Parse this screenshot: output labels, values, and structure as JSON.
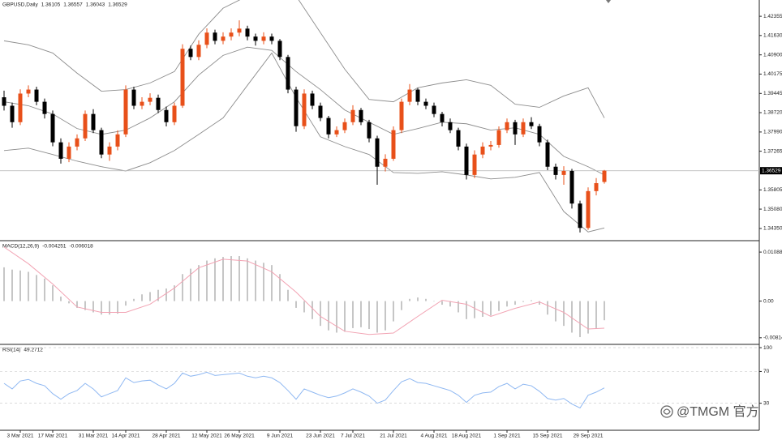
{
  "chart_data": [
    {
      "type": "candlestick",
      "title": "GBPUSD,Daily",
      "categories": [
        null,
        null,
        "3 Mar 2021",
        null,
        null,
        null,
        "17 Mar 2021",
        null,
        null,
        null,
        null,
        "31 Mar 2021",
        null,
        null,
        null,
        "14 Apr 2021",
        null,
        null,
        null,
        null,
        "28 Apr 2021",
        null,
        null,
        null,
        null,
        "12 May 2021",
        null,
        null,
        null,
        "26 May 2021",
        null,
        null,
        null,
        null,
        "9 Jun 2021",
        null,
        null,
        null,
        null,
        "23 Jun 2021",
        null,
        null,
        null,
        "7 Jul 2021",
        null,
        null,
        null,
        null,
        "21 Jul 2021",
        null,
        null,
        null,
        null,
        "4 Aug 2021",
        null,
        null,
        null,
        "18 Aug 2021",
        null,
        null,
        null,
        null,
        "1 Sep 2021",
        null,
        null,
        null,
        null,
        "15 Sep 2021",
        null,
        null,
        null,
        null,
        "29 Sep 2021",
        null,
        null
      ],
      "open": [
        1.393,
        1.3898,
        1.3836,
        1.3944,
        1.3959,
        1.3913,
        1.3867,
        1.376,
        1.3698,
        1.3744,
        1.3775,
        1.3867,
        1.3806,
        1.3714,
        1.3744,
        1.379,
        1.3959,
        1.3898,
        1.3913,
        1.3928,
        1.3882,
        1.3836,
        1.3898,
        1.4113,
        1.4082,
        1.4128,
        1.4174,
        1.4143,
        1.4159,
        1.4174,
        1.4189,
        1.4159,
        1.4143,
        1.4159,
        1.4143,
        1.4082,
        1.3959,
        1.3821,
        1.3944,
        1.3898,
        1.3852,
        1.379,
        1.3806,
        1.3836,
        1.3882,
        1.3836,
        1.3775,
        1.3668,
        1.3698,
        1.3806,
        1.3913,
        1.3959,
        1.3913,
        1.3898,
        1.3867,
        1.3836,
        1.3806,
        1.3744,
        1.3637,
        1.3714,
        1.3744,
        1.375,
        1.3806,
        1.3836,
        1.379,
        1.3836,
        1.3821,
        1.376,
        1.3668,
        1.3637,
        1.3652,
        1.3529,
        1.3437,
        1.3576,
        1.36105
      ],
      "high": [
        1.3955,
        1.391,
        1.396,
        1.3975,
        1.397,
        1.3925,
        1.388,
        1.3775,
        1.376,
        1.379,
        1.388,
        1.3885,
        1.3815,
        1.376,
        1.3805,
        1.3975,
        1.397,
        1.393,
        1.3945,
        1.394,
        1.3895,
        1.391,
        1.413,
        1.4125,
        1.4145,
        1.419,
        1.4185,
        1.4175,
        1.419,
        1.422,
        1.42,
        1.417,
        1.4175,
        1.417,
        1.415,
        1.409,
        1.397,
        1.396,
        1.3955,
        1.391,
        1.386,
        1.382,
        1.385,
        1.39,
        1.389,
        1.3845,
        1.3785,
        1.3715,
        1.382,
        1.3925,
        1.398,
        1.3965,
        1.3925,
        1.391,
        1.3875,
        1.385,
        1.3815,
        1.3755,
        1.373,
        1.376,
        1.3765,
        1.382,
        1.385,
        1.3845,
        1.385,
        1.3855,
        1.383,
        1.377,
        1.368,
        1.367,
        1.366,
        1.354,
        1.359,
        1.3625,
        1.36557
      ],
      "low": [
        1.388,
        1.3815,
        1.3825,
        1.393,
        1.39,
        1.385,
        1.3745,
        1.368,
        1.3685,
        1.373,
        1.3765,
        1.3795,
        1.37,
        1.369,
        1.373,
        1.378,
        1.3885,
        1.3885,
        1.39,
        1.387,
        1.382,
        1.3825,
        1.389,
        1.407,
        1.407,
        1.4115,
        1.413,
        1.413,
        1.4145,
        1.416,
        1.4145,
        1.4125,
        1.413,
        1.413,
        1.407,
        1.3945,
        1.38,
        1.381,
        1.3885,
        1.384,
        1.3775,
        1.378,
        1.3795,
        1.3825,
        1.3825,
        1.376,
        1.36,
        1.365,
        1.369,
        1.3795,
        1.39,
        1.39,
        1.3885,
        1.3855,
        1.382,
        1.3795,
        1.373,
        1.362,
        1.3625,
        1.37,
        1.373,
        1.374,
        1.3795,
        1.375,
        1.378,
        1.381,
        1.3745,
        1.3655,
        1.362,
        1.36,
        1.351,
        1.342,
        1.343,
        1.356,
        1.36043
      ],
      "close": [
        1.3898,
        1.3836,
        1.3944,
        1.3959,
        1.3913,
        1.3867,
        1.376,
        1.3698,
        1.3744,
        1.3775,
        1.3867,
        1.3806,
        1.3714,
        1.3744,
        1.379,
        1.3959,
        1.3898,
        1.3913,
        1.3928,
        1.3882,
        1.3836,
        1.3898,
        1.4113,
        1.4082,
        1.4128,
        1.4174,
        1.4143,
        1.4159,
        1.4174,
        1.4189,
        1.4159,
        1.4143,
        1.4159,
        1.4143,
        1.4082,
        1.3959,
        1.3821,
        1.3944,
        1.3898,
        1.3852,
        1.379,
        1.3806,
        1.3836,
        1.3882,
        1.3836,
        1.3775,
        1.3668,
        1.3698,
        1.3806,
        1.3913,
        1.3959,
        1.3913,
        1.3898,
        1.3867,
        1.3836,
        1.3806,
        1.3744,
        1.3637,
        1.3714,
        1.3744,
        1.375,
        1.3806,
        1.3836,
        1.379,
        1.3836,
        1.3821,
        1.376,
        1.3668,
        1.3637,
        1.3652,
        1.3529,
        1.3437,
        1.3576,
        1.3606,
        1.36529
      ],
      "up_color": "#e8501a",
      "down_color": "#000000",
      "bands": {
        "x": [
          0,
          3,
          6,
          9,
          12,
          15,
          18,
          21,
          24,
          27,
          30,
          33,
          36,
          39,
          42,
          45,
          48,
          51,
          54,
          57,
          60,
          63,
          66,
          69,
          72,
          74
        ],
        "lines": [
          {
            "color": "#8c8c8c",
            "values": [
              1.4143,
              1.4128,
              1.4097,
              1.4021,
              1.3953,
              1.3959,
              1.3984,
              1.4027,
              1.4168,
              1.4266,
              1.4312,
              1.4358,
              1.4312,
              1.4174,
              1.4036,
              1.3922,
              1.3913,
              1.3966,
              1.3984,
              1.3996,
              1.3975,
              1.3904,
              1.3892,
              1.3935,
              1.3966,
              1.3852
            ]
          },
          {
            "color": "#8c8c8c",
            "values": [
              1.3913,
              1.3898,
              1.3867,
              1.3812,
              1.379,
              1.3806,
              1.3852,
              1.3913,
              1.4014,
              1.4088,
              1.4119,
              1.4107,
              1.4027,
              1.3959,
              1.3882,
              1.3836,
              1.379,
              1.3812,
              1.3836,
              1.383,
              1.3806,
              1.3815,
              1.379,
              1.3707,
              1.3668,
              1.3637
            ]
          },
          {
            "color": "#8c8c8c",
            "values": [
              1.3729,
              1.3738,
              1.3714,
              1.3689,
              1.3668,
              1.3652,
              1.3683,
              1.3729,
              1.379,
              1.3852,
              1.3975,
              1.4097,
              1.3929,
              1.3781,
              1.3744,
              1.3714,
              1.3646,
              1.3643,
              1.3649,
              1.3637,
              1.3622,
              1.3628,
              1.3646,
              1.3499,
              1.3422,
              1.3437
            ]
          }
        ]
      },
      "ylim": [
        1.3389,
        1.4297
      ],
      "yticks": [
        1.42355,
        {
          "value": 1.4163,
          "label": "1.41630"
        },
        {
          "value": 1.409,
          "label": "1.40900"
        },
        1.40175,
        1.39445,
        {
          "value": 1.3872,
          "label": "1.38720"
        },
        {
          "value": 1.3799,
          "label": "1.37990"
        },
        1.37265,
        1.35805,
        {
          "value": 1.3508,
          "label": "1.35080"
        },
        {
          "value": 1.3435,
          "label": "1.34350"
        }
      ]
    },
    {
      "type": "macd",
      "title": "MACD(12,26,9)",
      "values": [
        0.0075,
        0.007,
        0.0068,
        0.0065,
        0.0058,
        0.005,
        0.0035,
        0.001,
        -0.0005,
        -0.0015,
        -0.002,
        -0.0025,
        -0.003,
        -0.003,
        -0.0028,
        -0.001,
        0.0005,
        0.0015,
        0.002,
        0.0025,
        0.0028,
        0.0035,
        0.006,
        0.0072,
        0.008,
        0.009,
        0.0095,
        0.0098,
        0.01,
        0.01,
        0.0095,
        0.009,
        0.0085,
        0.008,
        0.006,
        0.0025,
        -0.0015,
        -0.0025,
        -0.004,
        -0.0055,
        -0.0065,
        -0.007,
        -0.0068,
        -0.006,
        -0.0058,
        -0.0062,
        -0.007,
        -0.0065,
        -0.0045,
        -0.002,
        0.0005,
        0.0008,
        0.0005,
        0,
        -0.0008,
        -0.0012,
        -0.0025,
        -0.004,
        -0.0038,
        -0.0035,
        -0.0032,
        -0.0022,
        -0.0012,
        -0.0008,
        -0.0002,
        0.0002,
        -0.0008,
        -0.003,
        -0.0045,
        -0.0055,
        -0.007,
        -0.008,
        -0.0072,
        -0.006,
        -0.004251
      ],
      "color": "#b4b4b4",
      "signal": {
        "x": [
          0,
          3,
          6,
          9,
          12,
          15,
          18,
          21,
          24,
          27,
          30,
          33,
          36,
          39,
          42,
          45,
          48,
          51,
          54,
          57,
          60,
          63,
          66,
          69,
          72,
          74
        ],
        "values": [
          0.012,
          0.0083,
          0.0038,
          -0.0013,
          -0.0025,
          -0.0025,
          -0.0007,
          0.0029,
          0.0074,
          0.0093,
          0.0089,
          0.0065,
          0.002,
          -0.0034,
          -0.0067,
          -0.0074,
          -0.0071,
          -0.0034,
          0.0002,
          -0.0007,
          -0.0034,
          -0.0016,
          -0.0002,
          -0.0025,
          -0.0062,
          -0.006018
        ],
        "color": "#f2a3b3"
      },
      "ylim": [
        -0.00961,
        0.01324
      ],
      "yticks": [
        0.010884,
        {
          "value": 0,
          "label": "0.00"
        },
        -0.008141
      ]
    },
    {
      "type": "line",
      "title": "RSI(14)",
      "values": [
        55,
        48,
        58,
        60,
        55,
        52,
        42,
        35,
        42,
        46,
        55,
        48,
        38,
        42,
        46,
        62,
        56,
        58,
        59,
        53,
        48,
        55,
        68,
        64,
        66,
        69,
        65,
        66,
        67,
        68,
        64,
        62,
        64,
        62,
        56,
        46,
        35,
        48,
        44,
        40,
        37,
        39,
        43,
        48,
        44,
        39,
        30,
        34,
        46,
        57,
        61,
        56,
        55,
        52,
        49,
        46,
        40,
        31,
        40,
        43,
        44,
        51,
        55,
        48,
        54,
        52,
        45,
        36,
        34,
        36,
        29,
        24,
        40,
        44,
        49.2712
      ],
      "color": "#8fb8f2",
      "ylim": [
        -4.1,
        103.1
      ],
      "yticks": [
        100,
        70,
        30
      ],
      "grid": true
    }
  ],
  "watermark": "@TMGM 官方"
}
